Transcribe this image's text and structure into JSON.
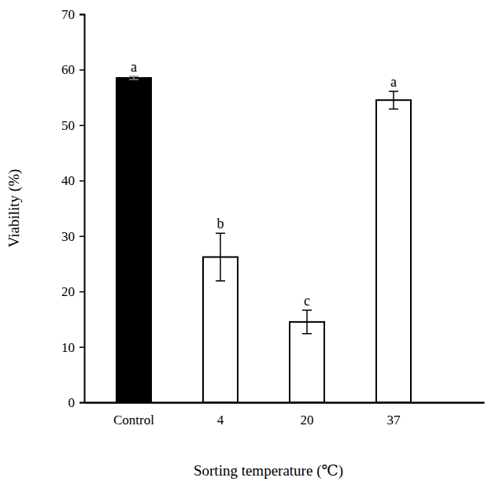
{
  "chart_data": {
    "type": "bar",
    "categories": [
      "Control",
      "4",
      "20",
      "37"
    ],
    "values": [
      58.5,
      26.2,
      14.5,
      54.5
    ],
    "errors": [
      0.3,
      4.3,
      2.1,
      1.6
    ],
    "annotations": [
      "a",
      "b",
      "c",
      "a"
    ],
    "colors": [
      "#000000",
      "#ffffff",
      "#ffffff",
      "#ffffff"
    ],
    "x_label": "Sorting temperature (℃)",
    "y_label": "Viability (%)",
    "ylim": [
      0,
      70
    ],
    "yticks": [
      0,
      10,
      20,
      30,
      40,
      50,
      60,
      70
    ]
  }
}
